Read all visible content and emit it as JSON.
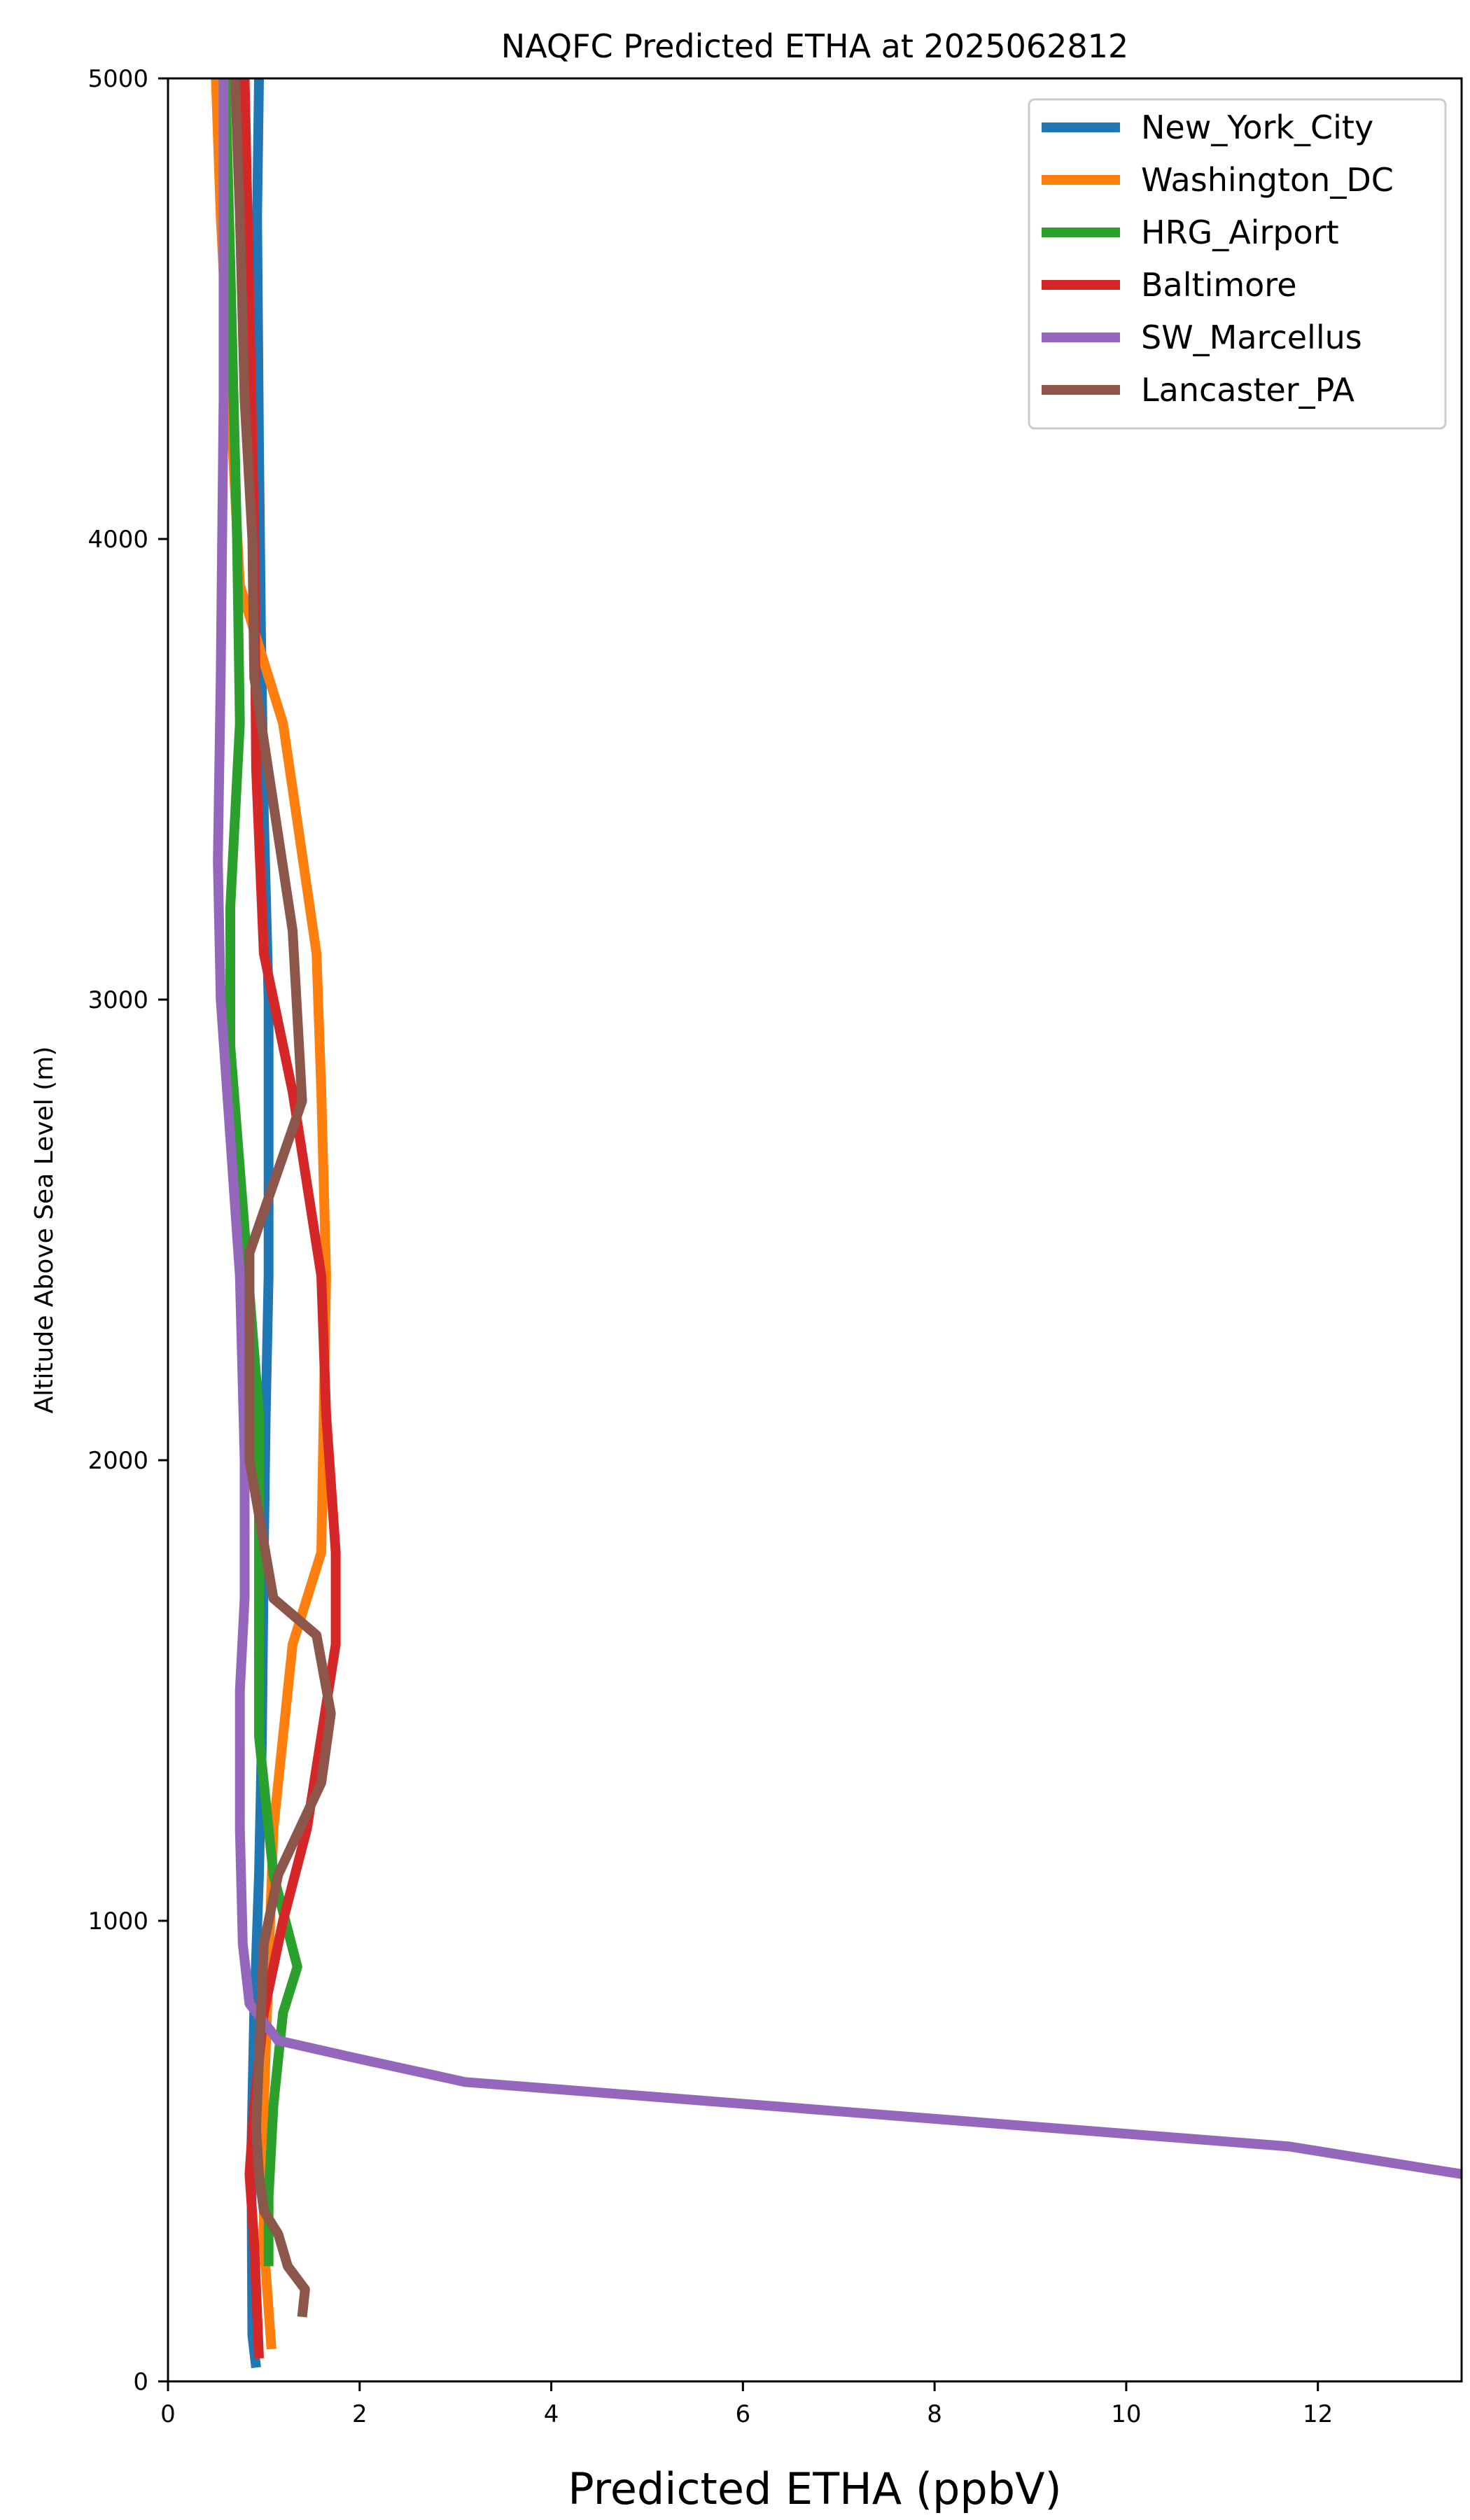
{
  "chart_data": {
    "type": "line",
    "title": "NAQFC Predicted ETHA at 2025062812",
    "xlabel": "Predicted ETHA (ppbV)",
    "ylabel": "Altitude Above Sea Level (m)",
    "xlim": [
      0,
      13.5
    ],
    "ylim": [
      0,
      5000
    ],
    "xticks": [
      0,
      2,
      4,
      6,
      8,
      10,
      12
    ],
    "yticks": [
      0,
      1000,
      2000,
      3000,
      4000,
      5000
    ],
    "grid": false,
    "legend_position": "top-right",
    "series": [
      {
        "name": "New_York_City",
        "color": "#1f77b4",
        "x": [
          0.92,
          0.88,
          0.87,
          0.9,
          0.95,
          0.98,
          1.0,
          1.02,
          1.05,
          1.05,
          1.0,
          0.97,
          0.95,
          0.93,
          0.95
        ],
        "y": [
          30,
          100,
          500,
          800,
          1100,
          1400,
          1800,
          2100,
          2400,
          3000,
          3400,
          3800,
          4200,
          4700,
          5000
        ]
      },
      {
        "name": "Washington_DC",
        "color": "#ff7f0e",
        "x": [
          1.08,
          1.0,
          1.0,
          1.05,
          1.1,
          1.2,
          1.3,
          1.6,
          1.65,
          1.6,
          1.55,
          1.2,
          0.75,
          0.65,
          0.55,
          0.5
        ],
        "y": [
          70,
          300,
          600,
          900,
          1200,
          1400,
          1600,
          1800,
          2400,
          2800,
          3100,
          3600,
          3900,
          4300,
          4700,
          5000
        ]
      },
      {
        "name": "HRG_Airport",
        "color": "#2ca02c",
        "x": [
          1.05,
          1.05,
          1.1,
          1.2,
          1.35,
          1.1,
          0.95,
          0.95,
          0.95,
          0.8,
          0.65,
          0.65,
          0.75,
          0.72,
          0.65,
          0.6
        ],
        "y": [
          250,
          400,
          600,
          800,
          900,
          1100,
          1400,
          1700,
          2100,
          2500,
          2900,
          3200,
          3600,
          4000,
          4600,
          5000
        ]
      },
      {
        "name": "Baltimore",
        "color": "#d62728",
        "x": [
          0.95,
          0.9,
          0.85,
          0.9,
          1.0,
          1.2,
          1.45,
          1.6,
          1.75,
          1.75,
          1.65,
          1.6,
          1.3,
          1.0,
          0.92,
          0.9,
          0.85,
          0.8
        ],
        "y": [
          50,
          300,
          450,
          600,
          800,
          1000,
          1200,
          1400,
          1600,
          1800,
          2100,
          2400,
          2800,
          3100,
          3500,
          4000,
          4500,
          5000
        ]
      },
      {
        "name": "SW_Marcellus",
        "color": "#9467bd",
        "x": [
          13.5,
          11.7,
          8.0,
          3.1,
          2.0,
          1.15,
          0.85,
          0.78,
          0.75,
          0.75,
          0.8,
          0.8,
          0.75,
          0.65,
          0.55,
          0.52,
          0.55,
          0.58,
          0.58
        ],
        "y": [
          450,
          510,
          570,
          650,
          700,
          740,
          820,
          950,
          1200,
          1500,
          1700,
          2000,
          2400,
          2700,
          3000,
          3300,
          3700,
          4300,
          5000
        ]
      },
      {
        "name": "Lancaster_PA",
        "color": "#8c564b",
        "x": [
          1.4,
          1.43,
          1.25,
          1.15,
          1.0,
          0.95,
          0.92,
          0.96,
          1.0,
          1.15,
          1.6,
          1.7,
          1.55,
          1.1,
          0.85,
          0.85,
          1.4,
          1.3,
          0.9,
          0.88,
          0.8,
          0.75,
          0.7
        ],
        "y": [
          140,
          200,
          250,
          320,
          370,
          450,
          550,
          750,
          950,
          1100,
          1300,
          1450,
          1620,
          1700,
          2000,
          2450,
          2780,
          3150,
          3700,
          4000,
          4300,
          4700,
          5000
        ]
      }
    ]
  }
}
